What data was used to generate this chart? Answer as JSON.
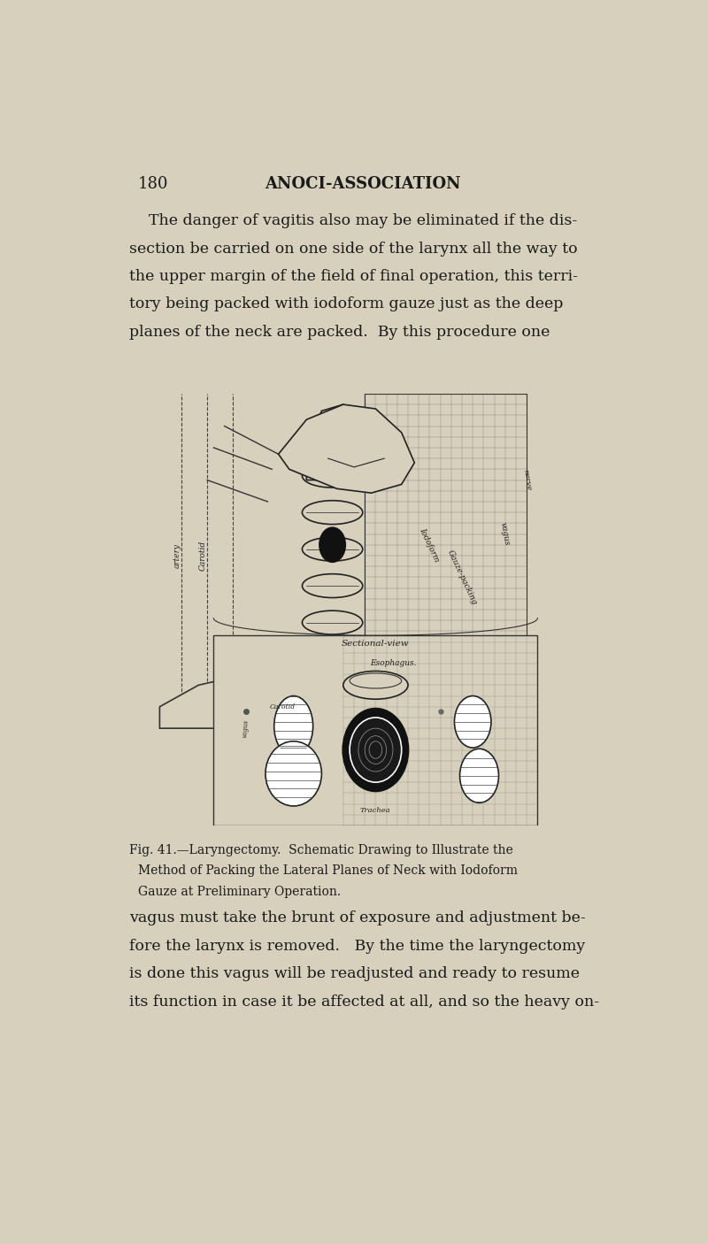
{
  "page_number": "180",
  "header": "ANOCI-ASSOCIATION",
  "background_color": "#d6d0bc",
  "text_color": "#1a1a1a",
  "paragraph1": "The danger of vagitis also may be eliminated if the dis-\nsection be carried on one side of the larynx all the way to\nthe upper margin of the field of final operation, this terri-\ntory being packed with iodoform gauze just as the deep\nplanes of the neck are packed.  By this procedure one",
  "caption_line1": "Fig. 41.—Laryngectomy.  Schematic Drawing to Illustrate the",
  "caption_line2": "Method of Packing the Lateral Planes of Neck with Iodoform",
  "caption_line3": "Gauze at Preliminary Operation.",
  "paragraph2": "vagus must take the brunt of exposure and adjustment be-\nfore the larynx is removed.   By the time the laryngectomy\nis done this vagus will be readjusted and ready to resume\nits function in case it be affected at all, and so the heavy on-",
  "grid_color": "#555555",
  "line_color": "#111111"
}
